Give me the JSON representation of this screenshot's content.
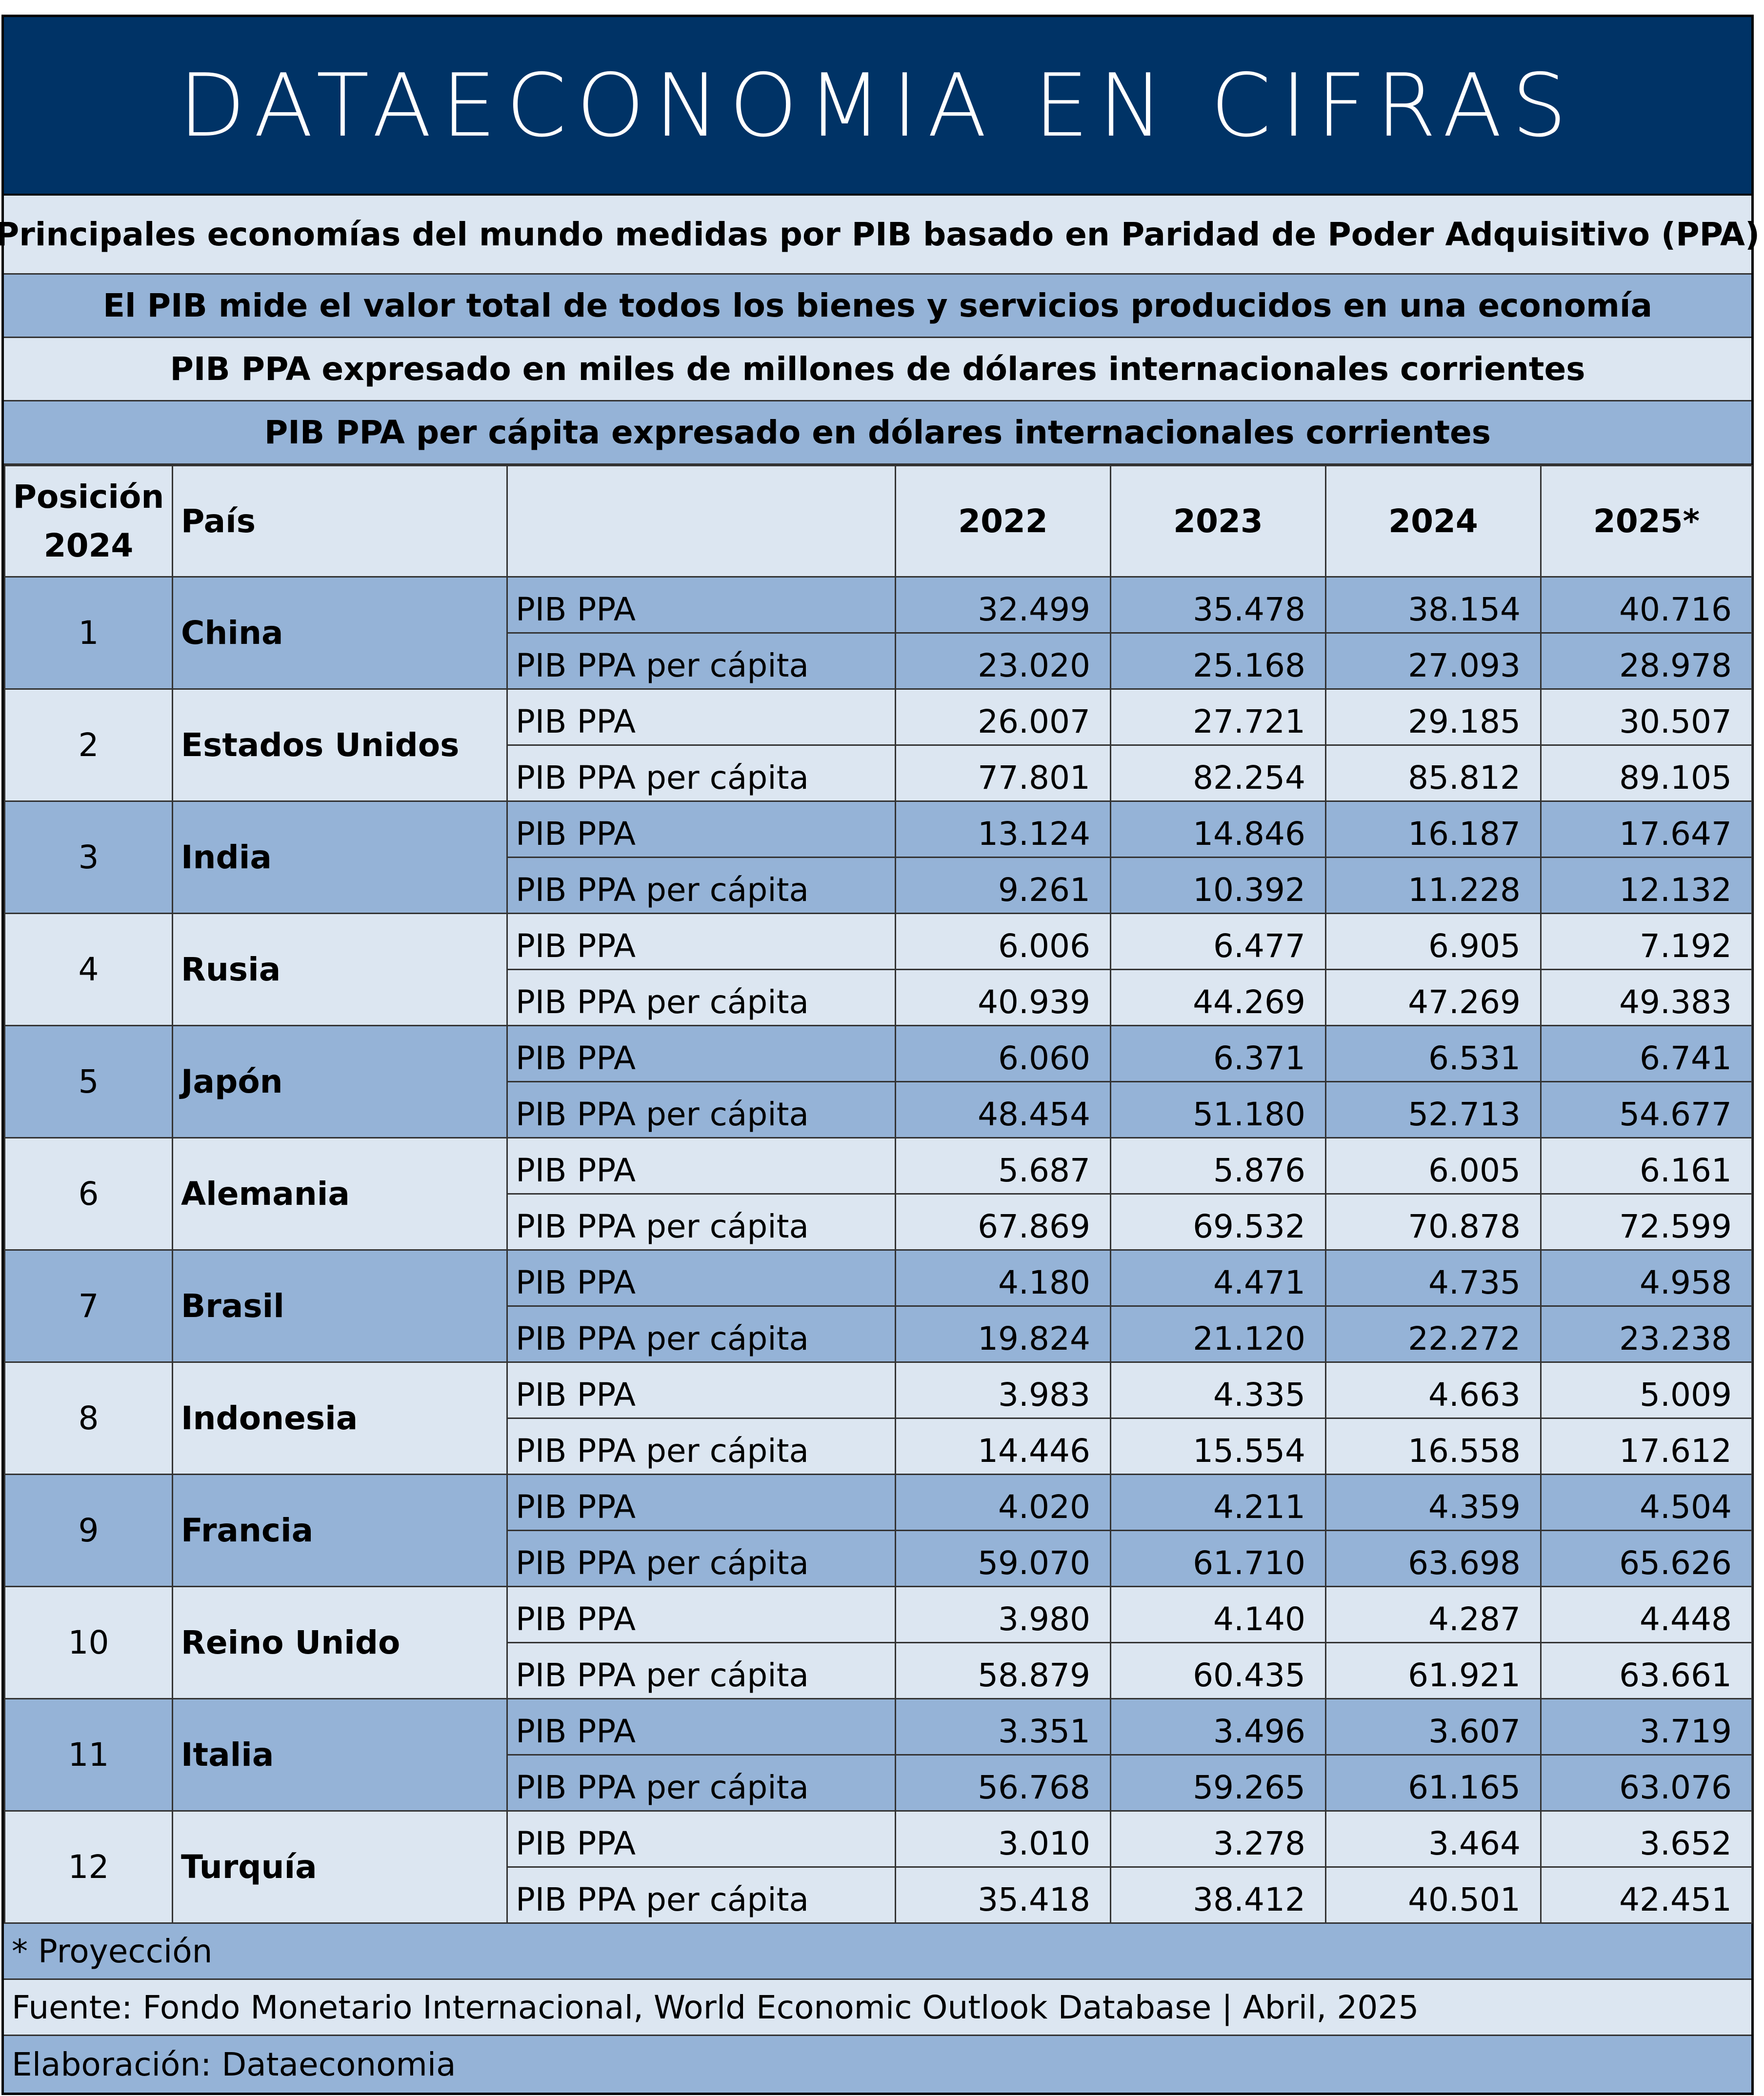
{
  "banner": {
    "title": "DATAECONOMIA EN CIFRAS"
  },
  "info_lines": [
    "Principales economías del mundo medidas por PIB basado en Paridad de Poder Adquisitivo (PPA)",
    "El PIB mide el valor total de todos los bienes y servicios producidos en una economía",
    "PIB PPA expresado en miles de millones de dólares internacionales corrientes",
    "PIB PPA per cápita expresado en dólares internacionales corrientes"
  ],
  "table": {
    "headers": {
      "position_line1": "Posición",
      "position_line2": "2024",
      "country": "País",
      "metric": "",
      "years": [
        "2022",
        "2023",
        "2024",
        "2025*"
      ]
    },
    "metric_labels": {
      "gdp": "PIB PPA",
      "gdp_pc": "PIB PPA per cápita"
    },
    "rows": [
      {
        "pos": "1",
        "country": "China",
        "gdp": [
          "32.499",
          "35.478",
          "38.154",
          "40.716"
        ],
        "gdp_pc": [
          "23.020",
          "25.168",
          "27.093",
          "28.978"
        ]
      },
      {
        "pos": "2",
        "country": "Estados Unidos",
        "gdp": [
          "26.007",
          "27.721",
          "29.185",
          "30.507"
        ],
        "gdp_pc": [
          "77.801",
          "82.254",
          "85.812",
          "89.105"
        ]
      },
      {
        "pos": "3",
        "country": "India",
        "gdp": [
          "13.124",
          "14.846",
          "16.187",
          "17.647"
        ],
        "gdp_pc": [
          "9.261",
          "10.392",
          "11.228",
          "12.132"
        ]
      },
      {
        "pos": "4",
        "country": "Rusia",
        "gdp": [
          "6.006",
          "6.477",
          "6.905",
          "7.192"
        ],
        "gdp_pc": [
          "40.939",
          "44.269",
          "47.269",
          "49.383"
        ]
      },
      {
        "pos": "5",
        "country": "Japón",
        "gdp": [
          "6.060",
          "6.371",
          "6.531",
          "6.741"
        ],
        "gdp_pc": [
          "48.454",
          "51.180",
          "52.713",
          "54.677"
        ]
      },
      {
        "pos": "6",
        "country": "Alemania",
        "gdp": [
          "5.687",
          "5.876",
          "6.005",
          "6.161"
        ],
        "gdp_pc": [
          "67.869",
          "69.532",
          "70.878",
          "72.599"
        ]
      },
      {
        "pos": "7",
        "country": "Brasil",
        "gdp": [
          "4.180",
          "4.471",
          "4.735",
          "4.958"
        ],
        "gdp_pc": [
          "19.824",
          "21.120",
          "22.272",
          "23.238"
        ]
      },
      {
        "pos": "8",
        "country": "Indonesia",
        "gdp": [
          "3.983",
          "4.335",
          "4.663",
          "5.009"
        ],
        "gdp_pc": [
          "14.446",
          "15.554",
          "16.558",
          "17.612"
        ]
      },
      {
        "pos": "9",
        "country": "Francia",
        "gdp": [
          "4.020",
          "4.211",
          "4.359",
          "4.504"
        ],
        "gdp_pc": [
          "59.070",
          "61.710",
          "63.698",
          "65.626"
        ]
      },
      {
        "pos": "10",
        "country": "Reino Unido",
        "gdp": [
          "3.980",
          "4.140",
          "4.287",
          "4.448"
        ],
        "gdp_pc": [
          "58.879",
          "60.435",
          "61.921",
          "63.661"
        ]
      },
      {
        "pos": "11",
        "country": "Italia",
        "gdp": [
          "3.351",
          "3.496",
          "3.607",
          "3.719"
        ],
        "gdp_pc": [
          "56.768",
          "59.265",
          "61.165",
          "63.076"
        ]
      },
      {
        "pos": "12",
        "country": "Turquía",
        "gdp": [
          "3.010",
          "3.278",
          "3.464",
          "3.652"
        ],
        "gdp_pc": [
          "35.418",
          "38.412",
          "40.501",
          "42.451"
        ]
      }
    ]
  },
  "notes": {
    "projection": "* Proyección",
    "source": "Fuente: Fondo Monetario Internacional, World Economic Outlook Database | Abril, 2025",
    "credit": "Elaboración: Dataeconomia"
  },
  "colors": {
    "banner": "#003366",
    "band_dark": "#95b3d7",
    "band_light": "#dce6f1",
    "banner_text": "#ffffff"
  }
}
